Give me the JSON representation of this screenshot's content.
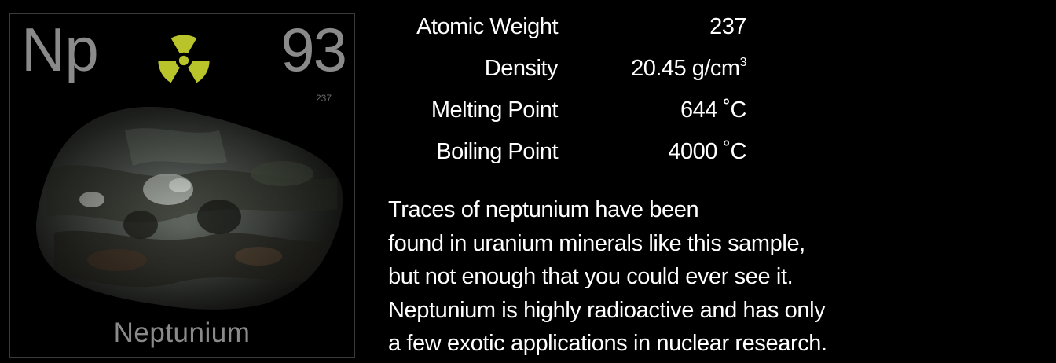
{
  "element": {
    "symbol": "Np",
    "atomic_number": "93",
    "atomic_weight_small": "237",
    "name": "Neptunium",
    "radiation_icon": "radiation-trefoil-icon",
    "colors": {
      "radiation": "#b8c42a",
      "tile_text": "#8a8a8a",
      "tile_border": "#3a3a3a"
    }
  },
  "properties": [
    {
      "label": "Atomic Weight",
      "value": "237",
      "unit_sup": ""
    },
    {
      "label": "Density",
      "value": "20.45 g/cm",
      "unit_sup": "3"
    },
    {
      "label": "Melting Point",
      "value": "644 ˚C",
      "unit_sup": ""
    },
    {
      "label": "Boiling Point",
      "value": "4000 ˚C",
      "unit_sup": ""
    }
  ],
  "description": [
    "Traces of neptunium have been",
    "found in uranium minerals like this sample,",
    "but not enough that you could ever see it.",
    "Neptunium is highly radioactive and has only",
    "a few exotic applications in nuclear research."
  ]
}
